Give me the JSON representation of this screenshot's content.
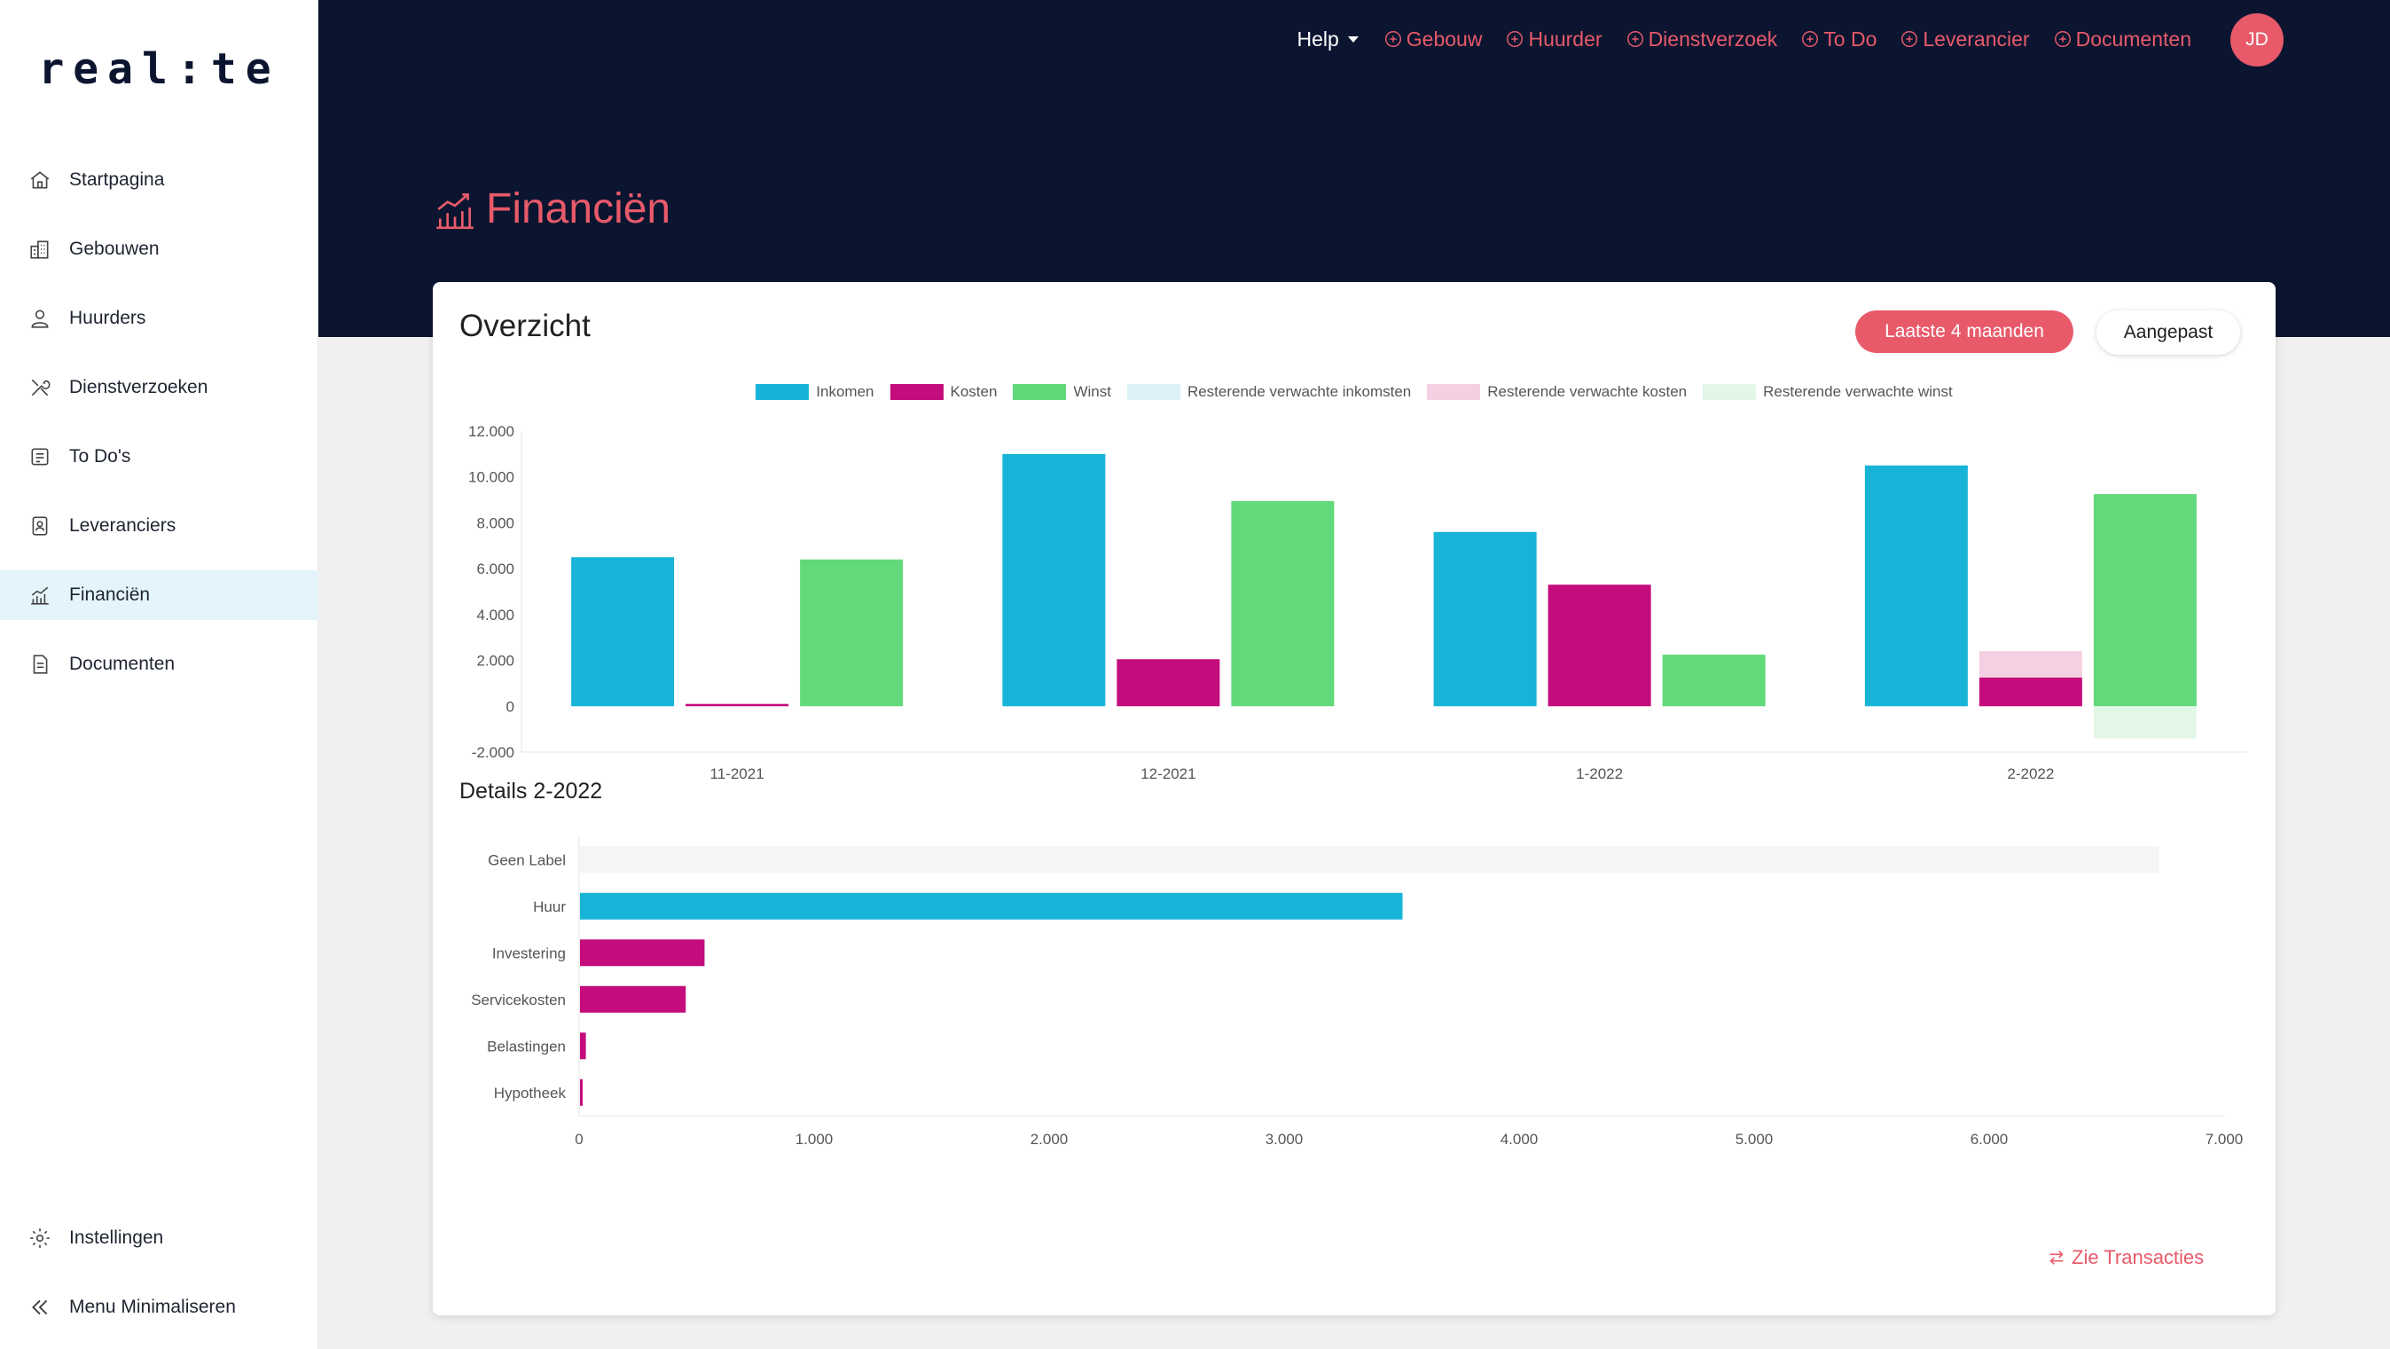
{
  "app": {
    "logo": "real:te"
  },
  "sidebar": {
    "items": [
      {
        "label": "Startpagina",
        "icon": "home-icon"
      },
      {
        "label": "Gebouwen",
        "icon": "buildings-icon"
      },
      {
        "label": "Huurders",
        "icon": "tenants-icon"
      },
      {
        "label": "Dienstverzoeken",
        "icon": "tools-icon"
      },
      {
        "label": "To Do's",
        "icon": "todo-icon"
      },
      {
        "label": "Leveranciers",
        "icon": "suppliers-icon"
      },
      {
        "label": "Financiën",
        "icon": "finance-chart-icon",
        "active": true
      },
      {
        "label": "Documenten",
        "icon": "document-icon"
      }
    ],
    "settings_label": "Instellingen",
    "minimize_label": "Menu Minimaliseren"
  },
  "topnav": {
    "help_label": "Help",
    "links": [
      "Gebouw",
      "Huurder",
      "Dienstverzoek",
      "To Do",
      "Leverancier",
      "Documenten"
    ],
    "avatar_initials": "JD"
  },
  "page": {
    "title": "Financiën"
  },
  "card": {
    "title": "Overzicht",
    "period_button": "Laatste 4 maanden",
    "custom_button": "Aangepast",
    "details_title": "Details 2-2022",
    "see_transactions": "Zie Transacties"
  },
  "colors": {
    "accent": "#e85a6a",
    "navy": "#0b1530",
    "inkomen": "#17b4d8",
    "kosten": "#c40c7c",
    "winst": "#62d97a",
    "rest_inkomen": "#dcf2f8",
    "rest_kosten": "#f5d0e2",
    "rest_winst": "#e2f7e6",
    "geen_label": "#f5f5f5"
  },
  "chart_data": [
    {
      "type": "bar",
      "categories": [
        "11-2021",
        "12-2021",
        "1-2022",
        "2-2022"
      ],
      "series": [
        {
          "name": "Inkomen",
          "values": [
            6500,
            11000,
            7600,
            10500
          ]
        },
        {
          "name": "Kosten",
          "values": [
            100,
            2050,
            5300,
            1250
          ]
        },
        {
          "name": "Winst",
          "values": [
            6400,
            8950,
            2250,
            9250
          ]
        },
        {
          "name": "Resterende verwachte inkomsten",
          "values": [
            0,
            0,
            0,
            0
          ]
        },
        {
          "name": "Resterende verwachte kosten",
          "values": [
            0,
            0,
            0,
            1150
          ]
        },
        {
          "name": "Resterende verwachte winst",
          "values": [
            0,
            0,
            0,
            -1400
          ]
        }
      ],
      "yticks": [
        "12.000",
        "10.000",
        "8.000",
        "6.000",
        "4.000",
        "2.000",
        "0",
        "-2.000"
      ],
      "ylim": [
        -2000,
        12000
      ],
      "legend": "top-center"
    },
    {
      "type": "bar",
      "orientation": "horizontal",
      "categories": [
        "Geen Label",
        "Huur",
        "Investering",
        "Servicekosten",
        "Belastingen",
        "Hypotheek"
      ],
      "values": [
        6720,
        3500,
        530,
        450,
        25,
        10
      ],
      "kinds": [
        "neutral",
        "inkomen",
        "kosten",
        "kosten",
        "kosten",
        "kosten"
      ],
      "xticks": [
        "0",
        "1.000",
        "2.000",
        "3.000",
        "4.000",
        "5.000",
        "6.000",
        "7.000"
      ],
      "xlim": [
        0,
        7000
      ]
    }
  ]
}
